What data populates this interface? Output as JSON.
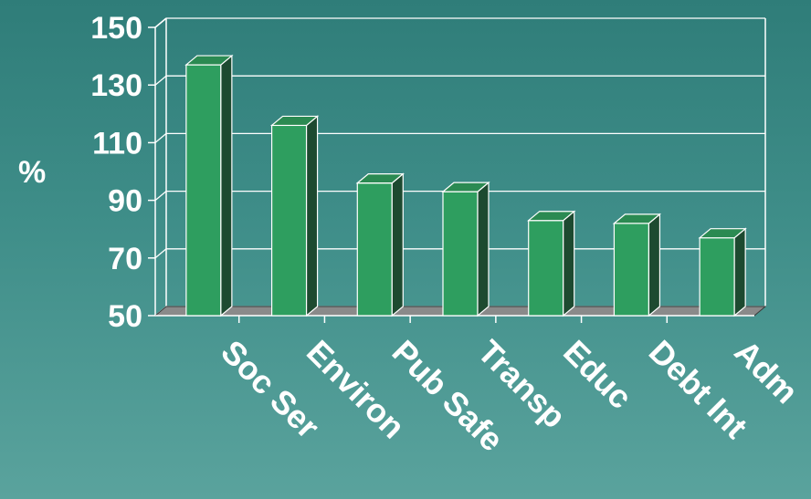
{
  "chart_data": {
    "type": "bar",
    "categories": [
      "Soc Ser",
      "Environ",
      "Pub Safe",
      "Transp",
      "Educ",
      "Debt Int",
      "Adm"
    ],
    "values": [
      137,
      116,
      96,
      93,
      83,
      82,
      77
    ],
    "ylabel": "%",
    "ylim": [
      50,
      150
    ],
    "yticks": [
      50,
      70,
      90,
      110,
      130,
      150
    ],
    "grid": true,
    "colors": {
      "bar_front": "#2e9e5f",
      "bar_side": "#1d4a30",
      "bar_top": "#2b8a52",
      "floor": "#8a8a8a",
      "grid": "#ffffff",
      "text": "#ffffff"
    }
  }
}
